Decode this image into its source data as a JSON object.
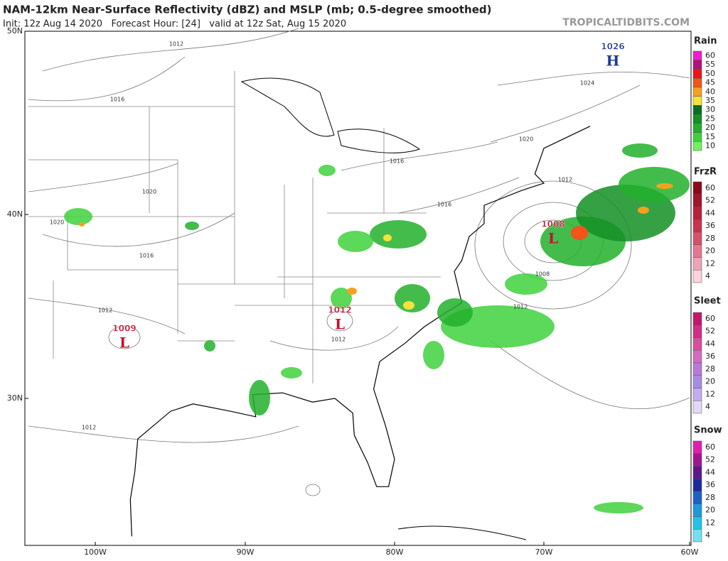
{
  "header": {
    "title": "NAM-12km Near-Surface Reflectivity (dBZ) and MSLP (mb; 0.5-degree smoothed)",
    "subtitle": "Init: 12z Aug 14 2020   Forecast Hour: [24]   valid at 12z Sat, Aug 15 2020",
    "source": "TROPICALTIDBITS.COM"
  },
  "map": {
    "lat_labels": [
      "50N",
      "40N",
      "30N"
    ],
    "lon_labels": [
      "100W",
      "90W",
      "80W",
      "70W",
      "60W"
    ],
    "centers": [
      {
        "value": "1026",
        "letter": "H",
        "color": "#1f3a93"
      },
      {
        "value": "1009",
        "letter": "L",
        "color": "#c8102e"
      },
      {
        "value": "1012",
        "letter": "L",
        "color": "#c8102e"
      },
      {
        "value": "1008",
        "letter": "L",
        "color": "#c8102e"
      }
    ],
    "isobars": [
      "1012",
      "1016",
      "1020",
      "1016",
      "1020",
      "1012",
      "1012",
      "1012",
      "1016",
      "1016",
      "1012",
      "1020",
      "1024",
      "1008",
      "1012"
    ]
  },
  "legends": [
    {
      "title": "Rain",
      "levels": [
        {
          "label": "60",
          "color": "#f21bd0"
        },
        {
          "label": "55",
          "color": "#b0127a"
        },
        {
          "label": "50",
          "color": "#e8161b"
        },
        {
          "label": "45",
          "color": "#f2541a"
        },
        {
          "label": "40",
          "color": "#f6a01f"
        },
        {
          "label": "35",
          "color": "#f7e23a"
        },
        {
          "label": "30",
          "color": "#0a6e1e"
        },
        {
          "label": "25",
          "color": "#138f25"
        },
        {
          "label": "20",
          "color": "#22b02c"
        },
        {
          "label": "15",
          "color": "#3fd13d"
        },
        {
          "label": "10",
          "color": "#6ff25d"
        }
      ]
    },
    {
      "title": "FrzR",
      "levels": [
        {
          "label": "60",
          "color": "#8b0a1a"
        },
        {
          "label": "52",
          "color": "#a3132a"
        },
        {
          "label": "44",
          "color": "#b8203a"
        },
        {
          "label": "36",
          "color": "#c9324c"
        },
        {
          "label": "28",
          "color": "#d8506a"
        },
        {
          "label": "20",
          "color": "#e57790"
        },
        {
          "label": "12",
          "color": "#f0a2b6"
        },
        {
          "label": "4",
          "color": "#fbd2dd"
        }
      ]
    },
    {
      "title": "Sleet",
      "levels": [
        {
          "label": "60",
          "color": "#c2186b"
        },
        {
          "label": "52",
          "color": "#cf2f85"
        },
        {
          "label": "44",
          "color": "#d94d9e"
        },
        {
          "label": "36",
          "color": "#d36bc1"
        },
        {
          "label": "28",
          "color": "#b87ad8"
        },
        {
          "label": "20",
          "color": "#a78be6"
        },
        {
          "label": "12",
          "color": "#c2abf0"
        },
        {
          "label": "4",
          "color": "#e4d8fa"
        }
      ]
    },
    {
      "title": "Snow",
      "levels": [
        {
          "label": "60",
          "color": "#e01fb0"
        },
        {
          "label": "52",
          "color": "#a3148f"
        },
        {
          "label": "44",
          "color": "#5a1a8c"
        },
        {
          "label": "36",
          "color": "#1c2a9c"
        },
        {
          "label": "28",
          "color": "#1e60c8"
        },
        {
          "label": "20",
          "color": "#1c9adb"
        },
        {
          "label": "12",
          "color": "#21c3e6"
        },
        {
          "label": "4",
          "color": "#6fe2f2"
        }
      ]
    }
  ]
}
